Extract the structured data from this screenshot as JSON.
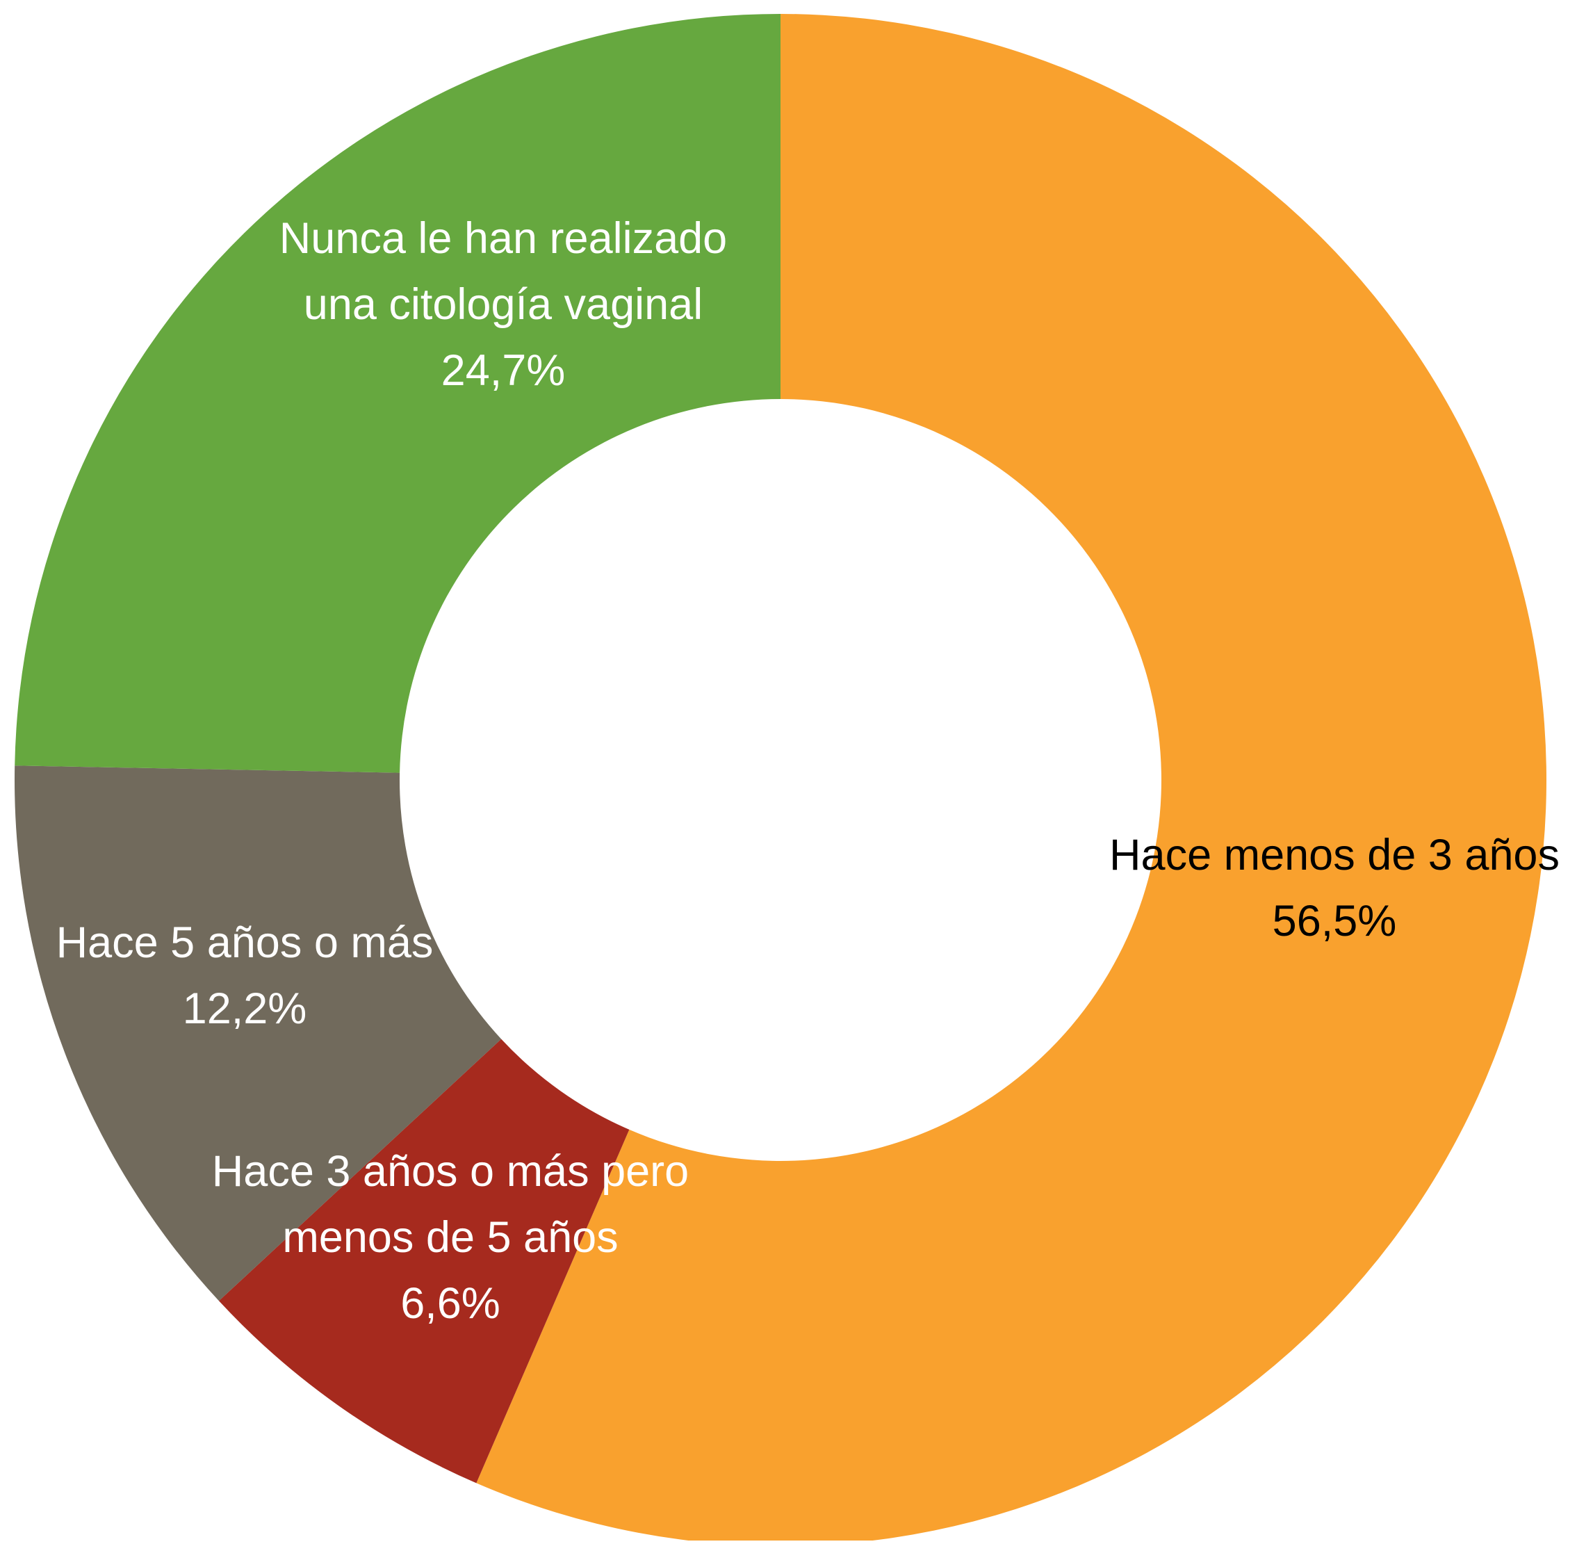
{
  "chart_data": {
    "type": "pie",
    "subtype": "donut",
    "start": "12 o'clock",
    "direction": "clockwise",
    "slices": [
      {
        "label_lines": [
          "Hace menos de 3 años"
        ],
        "value_label": "56,5%",
        "value": 56.5,
        "color": "#F9A12E",
        "label_color": "#000000"
      },
      {
        "label_lines": [
          "Hace 3 años o más pero",
          "menos de 5 años"
        ],
        "value_label": "6,6%",
        "value": 6.6,
        "color": "#A62A1E",
        "label_color": "#FFFFFF"
      },
      {
        "label_lines": [
          "Hace 5 años o más"
        ],
        "value_label": "12,2%",
        "value": 12.2,
        "color": "#716A5C",
        "label_color": "#FFFFFF"
      },
      {
        "label_lines": [
          "Nunca le han realizado",
          "una citología vaginal"
        ],
        "value_label": "24,7%",
        "value": 24.7,
        "color": "#66A83F",
        "label_color": "#FFFFFF"
      }
    ]
  }
}
